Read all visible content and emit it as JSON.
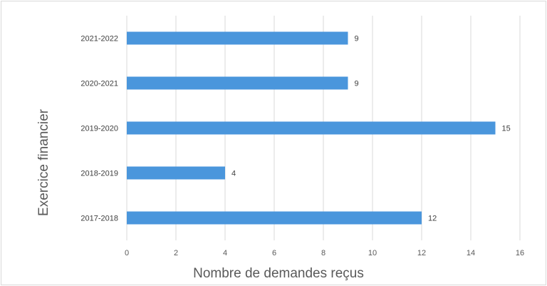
{
  "chart_data": {
    "type": "bar",
    "orientation": "horizontal",
    "title": "",
    "xlabel": "Nombre de demandes reçus",
    "ylabel": "Exercice financier",
    "categories": [
      "2021-2022",
      "2020-2021",
      "2019-2020",
      "2018-2019",
      "2017-2018"
    ],
    "values": [
      9,
      9,
      15,
      4,
      12
    ],
    "data_labels": [
      "9",
      "9",
      "15",
      "4",
      "12"
    ],
    "xlim": [
      0,
      16
    ],
    "xticks": [
      "0",
      "2",
      "4",
      "6",
      "8",
      "10",
      "12",
      "14",
      "16"
    ],
    "grid": true,
    "legend": "none",
    "bar_color": "#4a96dc",
    "grid_color": "#d9d9d9"
  }
}
